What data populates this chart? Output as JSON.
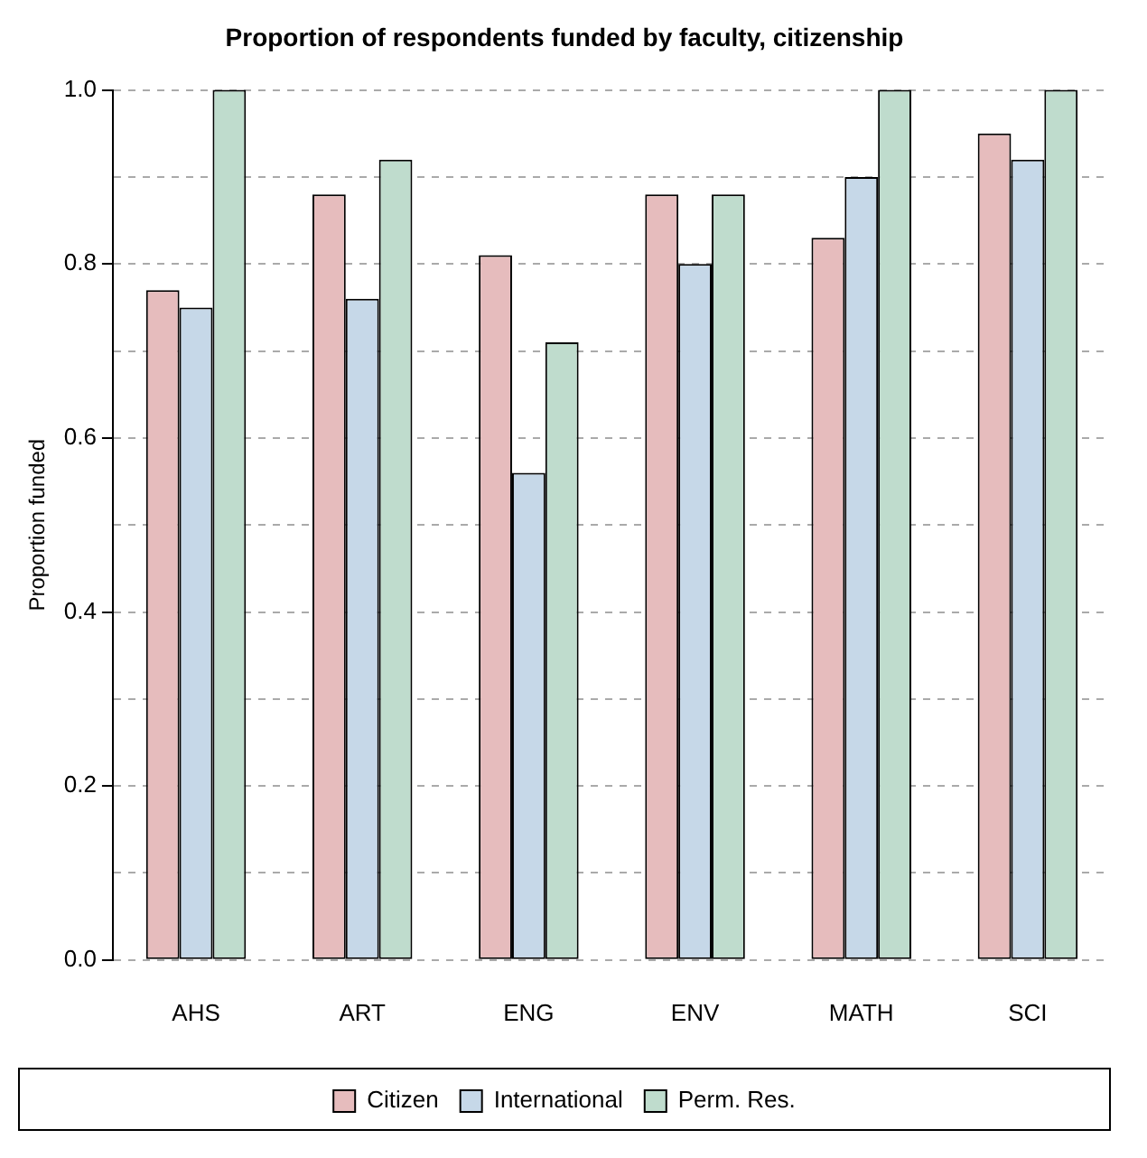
{
  "chart_data": {
    "type": "bar",
    "title": "Proportion of respondents funded by faculty, citizenship",
    "ylabel": "Proportion funded",
    "categories": [
      "AHS",
      "ART",
      "ENG",
      "ENV",
      "MATH",
      "SCI"
    ],
    "series": [
      {
        "name": "Citizen",
        "color": "#e6bcbd",
        "values": [
          0.77,
          0.88,
          0.81,
          0.88,
          0.83,
          0.95
        ]
      },
      {
        "name": "International",
        "color": "#c6d8e8",
        "values": [
          0.75,
          0.76,
          0.56,
          0.8,
          0.9,
          0.92
        ]
      },
      {
        "name": "Perm. Res.",
        "color": "#bfdccd",
        "values": [
          1.0,
          0.92,
          0.71,
          0.88,
          1.0,
          1.0
        ]
      }
    ],
    "ylim": [
      0,
      1
    ],
    "yticks": [
      {
        "value": 0,
        "label": "0.0"
      },
      {
        "value": 0.1,
        "label": null
      },
      {
        "value": 0.2,
        "label": "0.2"
      },
      {
        "value": 0.3,
        "label": null
      },
      {
        "value": 0.4,
        "label": "0.4"
      },
      {
        "value": 0.5,
        "label": null
      },
      {
        "value": 0.6,
        "label": "0.6"
      },
      {
        "value": 0.7,
        "label": null
      },
      {
        "value": 0.8,
        "label": "0.8"
      },
      {
        "value": 0.9,
        "label": null
      },
      {
        "value": 1,
        "label": "1.0"
      }
    ],
    "grid": "y",
    "legend": "bottom"
  }
}
